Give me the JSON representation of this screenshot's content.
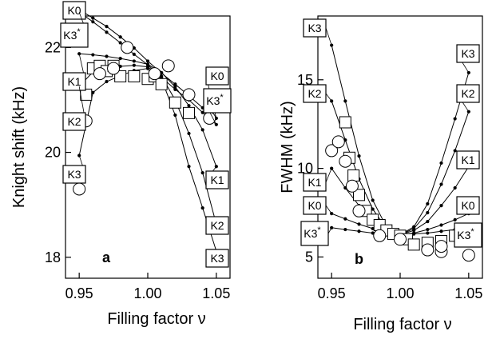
{
  "chart_data": [
    {
      "type": "line",
      "panel_label": "a",
      "xlabel": "Filling factor ν",
      "ylabel": "Knight shift (kHz)",
      "xlim": [
        0.94,
        1.06
      ],
      "ylim": [
        17.6,
        22.6
      ],
      "xticks": [
        0.95,
        1.0,
        1.05
      ],
      "xtick_labels": [
        "0.95",
        "1.00",
        "1.05"
      ],
      "yticks": [
        18,
        20,
        22
      ],
      "ytick_labels": [
        "18",
        "20",
        "22"
      ],
      "grid": false,
      "series": [
        {
          "name": "K0",
          "x": [
            0.95,
            0.96,
            0.97,
            0.98,
            0.99,
            1.0,
            1.01,
            1.02,
            1.03,
            1.04,
            1.05
          ],
          "y": [
            22.72,
            22.56,
            22.4,
            22.2,
            21.99,
            21.74,
            21.51,
            21.3,
            21.08,
            20.85,
            20.65
          ],
          "label_left": "K0",
          "label_right": "K0"
        },
        {
          "name": "K3*",
          "x": [
            0.95,
            0.96,
            0.97,
            0.98,
            0.99,
            1.0,
            1.01,
            1.02,
            1.03,
            1.04,
            1.05
          ],
          "y": [
            22.67,
            22.49,
            22.29,
            22.09,
            21.87,
            21.67,
            21.43,
            21.2,
            21.0,
            20.76,
            20.53
          ],
          "label_left": "K3*",
          "label_right": "K3*"
        },
        {
          "name": "K1",
          "x": [
            0.95,
            0.96,
            0.97,
            0.98,
            0.99,
            1.0,
            1.01,
            1.02,
            1.03,
            1.04,
            1.05
          ],
          "y": [
            21.88,
            21.86,
            21.83,
            21.79,
            21.74,
            21.68,
            21.52,
            21.25,
            20.89,
            20.43,
            19.73
          ],
          "label_left": "K1",
          "label_right": "K1"
        },
        {
          "name": "K2",
          "x": [
            0.95,
            0.96,
            0.97,
            0.98,
            0.99,
            1.0,
            1.01,
            1.02,
            1.03,
            1.04,
            1.05
          ],
          "y": [
            21.26,
            21.53,
            21.61,
            21.64,
            21.66,
            21.63,
            21.45,
            21.0,
            20.36,
            19.61,
            18.63
          ],
          "label_left": "K2",
          "label_right": "K2"
        },
        {
          "name": "K3",
          "x": [
            0.95,
            0.96,
            0.97,
            0.98,
            0.99,
            1.0,
            1.01,
            1.02,
            1.03,
            1.04,
            1.05
          ],
          "y": [
            19.94,
            21.14,
            21.35,
            21.46,
            21.56,
            21.6,
            21.4,
            20.71,
            19.73,
            18.94,
            18.12
          ],
          "label_left": "K3",
          "label_right": "K3"
        }
      ],
      "squares": {
        "x": [
          0.955,
          0.96,
          0.965,
          0.97,
          0.975,
          0.98,
          0.99,
          1.0,
          1.005,
          1.01,
          1.02,
          1.03
        ],
        "y": [
          21.1,
          21.6,
          21.65,
          21.55,
          21.65,
          21.45,
          21.45,
          21.4,
          21.45,
          21.3,
          20.95,
          20.75
        ]
      },
      "circles": {
        "x": [
          0.95,
          0.955,
          0.965,
          0.975,
          0.985,
          1.005,
          1.015,
          1.03,
          1.045
        ],
        "y": [
          19.3,
          20.6,
          21.5,
          21.6,
          22.0,
          21.5,
          21.65,
          21.1,
          20.65
        ]
      }
    },
    {
      "type": "line",
      "panel_label": "b",
      "xlabel": "Filling factor ν",
      "ylabel": "FWHM (kHz)",
      "xlim": [
        0.94,
        1.06
      ],
      "ylim": [
        3.8,
        18.6
      ],
      "xticks": [
        0.95,
        1.0,
        1.05
      ],
      "xtick_labels": [
        "0.95",
        "1.00",
        "1.05"
      ],
      "yticks": [
        5,
        10,
        15
      ],
      "ytick_labels": [
        "5",
        "10",
        "15"
      ],
      "grid": false,
      "series": [
        {
          "name": "K3",
          "x": [
            0.95,
            0.96,
            0.97,
            0.98,
            0.99,
            1.0,
            1.01,
            1.02,
            1.03,
            1.04,
            1.05
          ],
          "y": [
            16.95,
            13.8,
            10.7,
            8.2,
            6.7,
            6.25,
            6.7,
            8.0,
            10.3,
            12.8,
            15.4
          ],
          "label_left": "K3",
          "label_right": "K3"
        },
        {
          "name": "K2",
          "x": [
            0.95,
            0.96,
            0.97,
            0.98,
            0.99,
            1.0,
            1.01,
            1.02,
            1.03,
            1.04,
            1.05
          ],
          "y": [
            13.8,
            11.6,
            9.4,
            7.7,
            6.6,
            6.25,
            6.6,
            7.5,
            9.1,
            11.0,
            13.2
          ],
          "label_left": "K2",
          "label_right": "K2"
        },
        {
          "name": "K1",
          "x": [
            0.95,
            0.96,
            0.97,
            0.98,
            0.99,
            1.0,
            1.01,
            1.02,
            1.03,
            1.04,
            1.05
          ],
          "y": [
            10.0,
            8.9,
            7.9,
            7.1,
            6.5,
            6.25,
            6.5,
            7.0,
            7.9,
            8.9,
            10.1
          ],
          "label_left": "K1",
          "label_right": "K1"
        },
        {
          "name": "K0",
          "x": [
            0.95,
            0.96,
            0.97,
            0.98,
            0.99,
            1.0,
            1.01,
            1.02,
            1.03,
            1.04,
            1.05
          ],
          "y": [
            7.45,
            7.15,
            6.85,
            6.6,
            6.4,
            6.25,
            6.35,
            6.55,
            6.8,
            7.1,
            7.45
          ],
          "label_left": "K0",
          "label_right": "K0"
        },
        {
          "name": "K3*",
          "x": [
            0.95,
            0.96,
            0.97,
            0.98,
            0.99,
            1.0,
            1.01,
            1.02,
            1.03,
            1.04,
            1.05
          ],
          "y": [
            6.65,
            6.55,
            6.45,
            6.35,
            6.3,
            6.25,
            6.3,
            6.35,
            6.45,
            6.55,
            6.65
          ],
          "label_left": "K3*",
          "label_right": "K3*"
        }
      ],
      "squares": {
        "x": [
          0.96,
          0.963,
          0.966,
          0.97,
          0.975,
          0.98,
          0.985,
          0.99,
          0.995,
          1.0,
          1.005,
          1.01,
          1.02,
          1.03,
          1.04
        ],
        "y": [
          12.6,
          10.6,
          9.6,
          8.5,
          7.6,
          7.1,
          6.8,
          6.5,
          6.3,
          6.2,
          6.0,
          5.7,
          5.8,
          5.9,
          6.2
        ]
      },
      "circles": {
        "x": [
          0.95,
          0.955,
          0.96,
          0.965,
          0.97,
          0.985,
          1.0,
          1.02,
          1.03,
          1.03,
          1.045,
          1.05
        ],
        "y": [
          11.0,
          11.5,
          10.4,
          9.0,
          7.6,
          6.2,
          6.0,
          5.4,
          5.3,
          5.6,
          6.2,
          5.1
        ]
      }
    }
  ]
}
